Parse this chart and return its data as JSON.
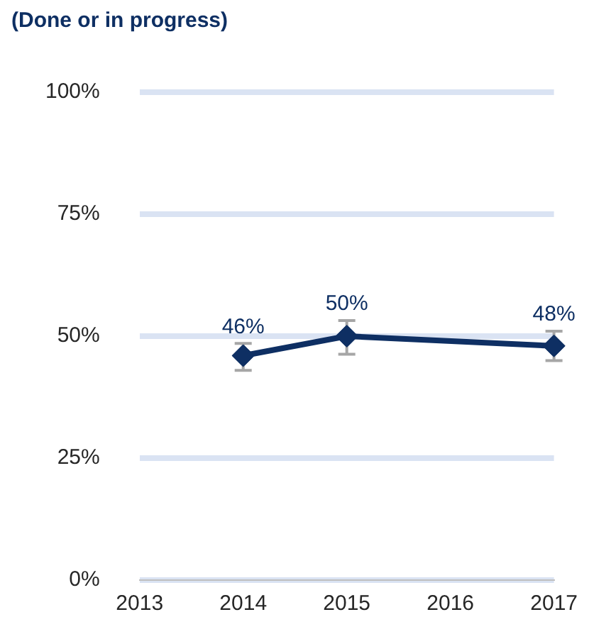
{
  "chart_data": {
    "type": "line",
    "title": "(Done or in progress)",
    "categories": [
      "2013",
      "2014",
      "2015",
      "2016",
      "2017"
    ],
    "series": [
      {
        "color": "#0e2f63",
        "values": [
          null,
          46,
          50,
          null,
          48
        ],
        "errors": [
          null,
          [
            43,
            48.5
          ],
          [
            46.3,
            53.2
          ],
          null,
          [
            45,
            51
          ]
        ],
        "value_labels": [
          null,
          "46%",
          "50%",
          null,
          "48%"
        ]
      }
    ],
    "ylim": [
      0,
      100
    ],
    "yticks": [
      {
        "value": 0,
        "label": "0%"
      },
      {
        "value": 25,
        "label": "25%"
      },
      {
        "value": 50,
        "label": "50%"
      },
      {
        "value": 75,
        "label": "75%"
      },
      {
        "value": 100,
        "label": "100%"
      }
    ],
    "grid": "y",
    "legend": false,
    "marker": "diamond",
    "line_style": "solid"
  }
}
